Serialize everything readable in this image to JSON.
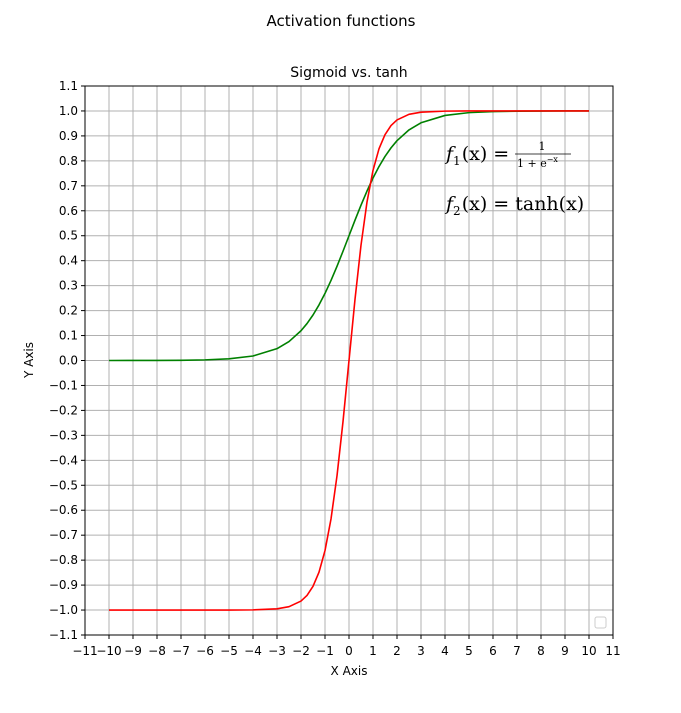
{
  "figure": {
    "suptitle": "Activation functions"
  },
  "chart_data": {
    "type": "line",
    "title": "Sigmoid vs. tanh",
    "xlabel": "X Axis",
    "ylabel": "Y Axis",
    "xlim": [
      -11,
      11
    ],
    "ylim": [
      -1.1,
      1.1
    ],
    "xticks": [
      -11,
      -10,
      -9,
      -8,
      -7,
      -6,
      -5,
      -4,
      -3,
      -2,
      -1,
      0,
      1,
      2,
      3,
      4,
      5,
      6,
      7,
      8,
      9,
      10,
      11
    ],
    "xtick_labels": [
      "−11",
      "−10",
      "−9",
      "−8",
      "−7",
      "−6",
      "−5",
      "−4",
      "−3",
      "−2",
      "−1",
      "0",
      "1",
      "2",
      "3",
      "4",
      "5",
      "6",
      "7",
      "8",
      "9",
      "10",
      "11"
    ],
    "yticks": [
      1.1,
      1.0,
      0.9,
      0.8,
      0.7,
      0.6,
      0.5,
      0.4,
      0.3,
      0.2,
      0.1,
      0.0,
      -0.1,
      -0.2,
      -0.3,
      -0.4,
      -0.5,
      -0.6,
      -0.7,
      -0.8,
      -0.9,
      -1.0,
      -1.1
    ],
    "ytick_labels": [
      "1.1",
      "1.0",
      "0.9",
      "0.8",
      "0.7",
      "0.6",
      "0.5",
      "0.4",
      "0.3",
      "0.2",
      "0.1",
      "0.0",
      "−0.1",
      "−0.2",
      "−0.3",
      "−0.4",
      "−0.5",
      "−0.6",
      "−0.7",
      "−0.8",
      "−0.9",
      "−1.0",
      "−1.1"
    ],
    "grid": true,
    "legend": "lower right (empty)",
    "x": [
      -10,
      -9,
      -8,
      -7,
      -6,
      -5,
      -4,
      -3,
      -2.5,
      -2,
      -1.75,
      -1.5,
      -1.25,
      -1,
      -0.75,
      -0.5,
      -0.25,
      0,
      0.25,
      0.5,
      0.75,
      1,
      1.25,
      1.5,
      1.75,
      2,
      2.5,
      3,
      4,
      5,
      6,
      7,
      8,
      9,
      10
    ],
    "series": [
      {
        "color": "#008000",
        "values": [
          0.0,
          0.0001,
          0.0003,
          0.0009,
          0.0025,
          0.0067,
          0.018,
          0.0474,
          0.0759,
          0.1192,
          0.148,
          0.1824,
          0.2227,
          0.2689,
          0.3208,
          0.3775,
          0.4378,
          0.5,
          0.5622,
          0.6225,
          0.6792,
          0.7311,
          0.7773,
          0.8176,
          0.852,
          0.8808,
          0.9241,
          0.9526,
          0.982,
          0.9933,
          0.9975,
          0.9991,
          0.9997,
          0.9999,
          1.0
        ]
      },
      {
        "color": "#ff0000",
        "values": [
          -1.0,
          -1.0,
          -1.0,
          -1.0,
          -1.0,
          -0.9999,
          -0.9993,
          -0.9951,
          -0.9866,
          -0.964,
          -0.9414,
          -0.9051,
          -0.8483,
          -0.7616,
          -0.6351,
          -0.4621,
          -0.2449,
          0.0,
          0.2449,
          0.4621,
          0.6351,
          0.7616,
          0.8483,
          0.9051,
          0.9414,
          0.964,
          0.9866,
          0.9951,
          0.9993,
          0.9999,
          1.0,
          1.0,
          1.0,
          1.0,
          1.0
        ]
      }
    ],
    "annotations": {
      "f1_lhs": "f",
      "f1_sub": "1",
      "f1_args": "(x) =",
      "f1_num": "1",
      "f1_den": "1 + e",
      "f1_exp": "−x",
      "f2_lhs": "f",
      "f2_sub": "2",
      "f2_rhs": "(x) = tanh(x)"
    }
  }
}
